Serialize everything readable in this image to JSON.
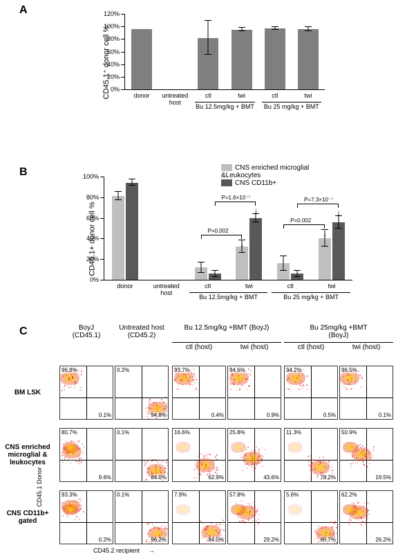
{
  "panelA": {
    "label": "A",
    "ylabel": "CD45.1⁺ donor cell %",
    "ymax": 120,
    "ytick_step": 20,
    "bar_color": "#7f7f7f",
    "categories": [
      "donor",
      "untreated\nhost",
      "ctl",
      "twi",
      "ctl",
      "twi"
    ],
    "values": [
      96,
      0,
      82,
      95,
      97,
      96
    ],
    "err": [
      0,
      0,
      27,
      3,
      2,
      3
    ],
    "groups": [
      {
        "label": "Bu 12.5mg/kg + BMT",
        "from": 2,
        "to": 3
      },
      {
        "label": "Bu 25 mg/kg + BMT",
        "from": 4,
        "to": 5
      }
    ]
  },
  "panelB": {
    "label": "B",
    "ylabel": "CD45.1+ donor cell %",
    "ymax": 100,
    "ytick_step": 20,
    "series": [
      {
        "name": "CNS enriched microglial\n&Leukocytes",
        "color": "#bfbfbf"
      },
      {
        "name": "CNS CD11b+",
        "color": "#595959"
      }
    ],
    "categories": [
      "donor",
      "untreated\nhost",
      "ctl",
      "twi",
      "ctl",
      "twi"
    ],
    "values_light": [
      81,
      0,
      12,
      32,
      16,
      40
    ],
    "values_dark": [
      94,
      0,
      6,
      60,
      6,
      56
    ],
    "err_light": [
      4,
      0,
      5,
      6,
      7,
      8
    ],
    "err_dark": [
      3,
      0,
      3,
      4,
      3,
      6
    ],
    "groups": [
      {
        "label": "Bu 12.5mg/kg + BMT",
        "from": 2,
        "to": 3
      },
      {
        "label": "Bu 25 mg/kg + BMT",
        "from": 4,
        "to": 5
      }
    ],
    "pvals": [
      {
        "text": "P=0.002",
        "group": 0,
        "series": "light"
      },
      {
        "text": "P=1.6×10⁻⁷",
        "group": 0,
        "series": "dark"
      },
      {
        "text": "P=0.002",
        "group": 1,
        "series": "light"
      },
      {
        "text": "P=7.3×10⁻⁷",
        "group": 1,
        "series": "dark"
      }
    ]
  },
  "panelC": {
    "label": "C",
    "col_headers_top": [
      "BoyJ\n(CD45.1)",
      "Untreated host\n(CD45.2)",
      "Bu 12.5mg/kg +BMT (BoyJ)",
      "Bu 25mg/kg +BMT (BoyJ)"
    ],
    "col_headers_sub": [
      "",
      "",
      "ctl  (host)",
      "twi  (host)",
      "ctl  (host)",
      "twi  (host)"
    ],
    "row_headers": [
      "BM LSK",
      "CNS enriched\nmicroglial &\nleukocytes",
      "CNS CD11b+\ngated"
    ],
    "y_axis": "CD45.1  Donor",
    "x_axis": "CD45.2 recipient",
    "cells": [
      [
        {
          "tl": "96.8%",
          "br": "0.1%"
        },
        {
          "tl": "0.2%",
          "br": "94.8%"
        },
        {
          "tl": "93.7%",
          "br": "0.4%"
        },
        {
          "tl": "94.6%",
          "br": "0.9%"
        },
        {
          "tl": "94.2%",
          "br": "0.5%"
        },
        {
          "tl": "96.5%",
          "br": "0.1%"
        }
      ],
      [
        {
          "tl": "80.7%",
          "br": "9.6%"
        },
        {
          "tl": "0.1%",
          "br": "84.0%"
        },
        {
          "tl": "16.6%",
          "br": "62.9%"
        },
        {
          "tl": "25.8%",
          "br": "43.6%"
        },
        {
          "tl": "11.3%",
          "br": "78.2%"
        },
        {
          "tl": "50.9%",
          "br": "19.5%"
        }
      ],
      [
        {
          "tl": "93.3%",
          "br": "0.2%"
        },
        {
          "tl": "0.1%",
          "br": "96.2%"
        },
        {
          "tl": "7.9%",
          "br": "84.0%"
        },
        {
          "tl": "57.8%",
          "br": "29.2%"
        },
        {
          "tl": "5.6%",
          "br": "90.7%"
        },
        {
          "tl": "62.2%",
          "br": "26.2%"
        }
      ]
    ],
    "cluster_pos": [
      [
        [
          0.18,
          0.22
        ],
        [
          0.78,
          0.78
        ],
        [
          0.2,
          0.22
        ],
        [
          0.2,
          0.22
        ],
        [
          0.2,
          0.22
        ],
        [
          0.18,
          0.22
        ]
      ],
      [
        [
          0.22,
          0.42
        ],
        [
          0.75,
          0.78
        ],
        [
          0.6,
          0.68
        ],
        [
          0.45,
          0.55
        ],
        [
          0.65,
          0.72
        ],
        [
          0.4,
          0.48
        ]
      ],
      [
        [
          0.2,
          0.3
        ],
        [
          0.78,
          0.8
        ],
        [
          0.72,
          0.75
        ],
        [
          0.35,
          0.4
        ],
        [
          0.75,
          0.78
        ],
        [
          0.35,
          0.4
        ]
      ]
    ]
  }
}
